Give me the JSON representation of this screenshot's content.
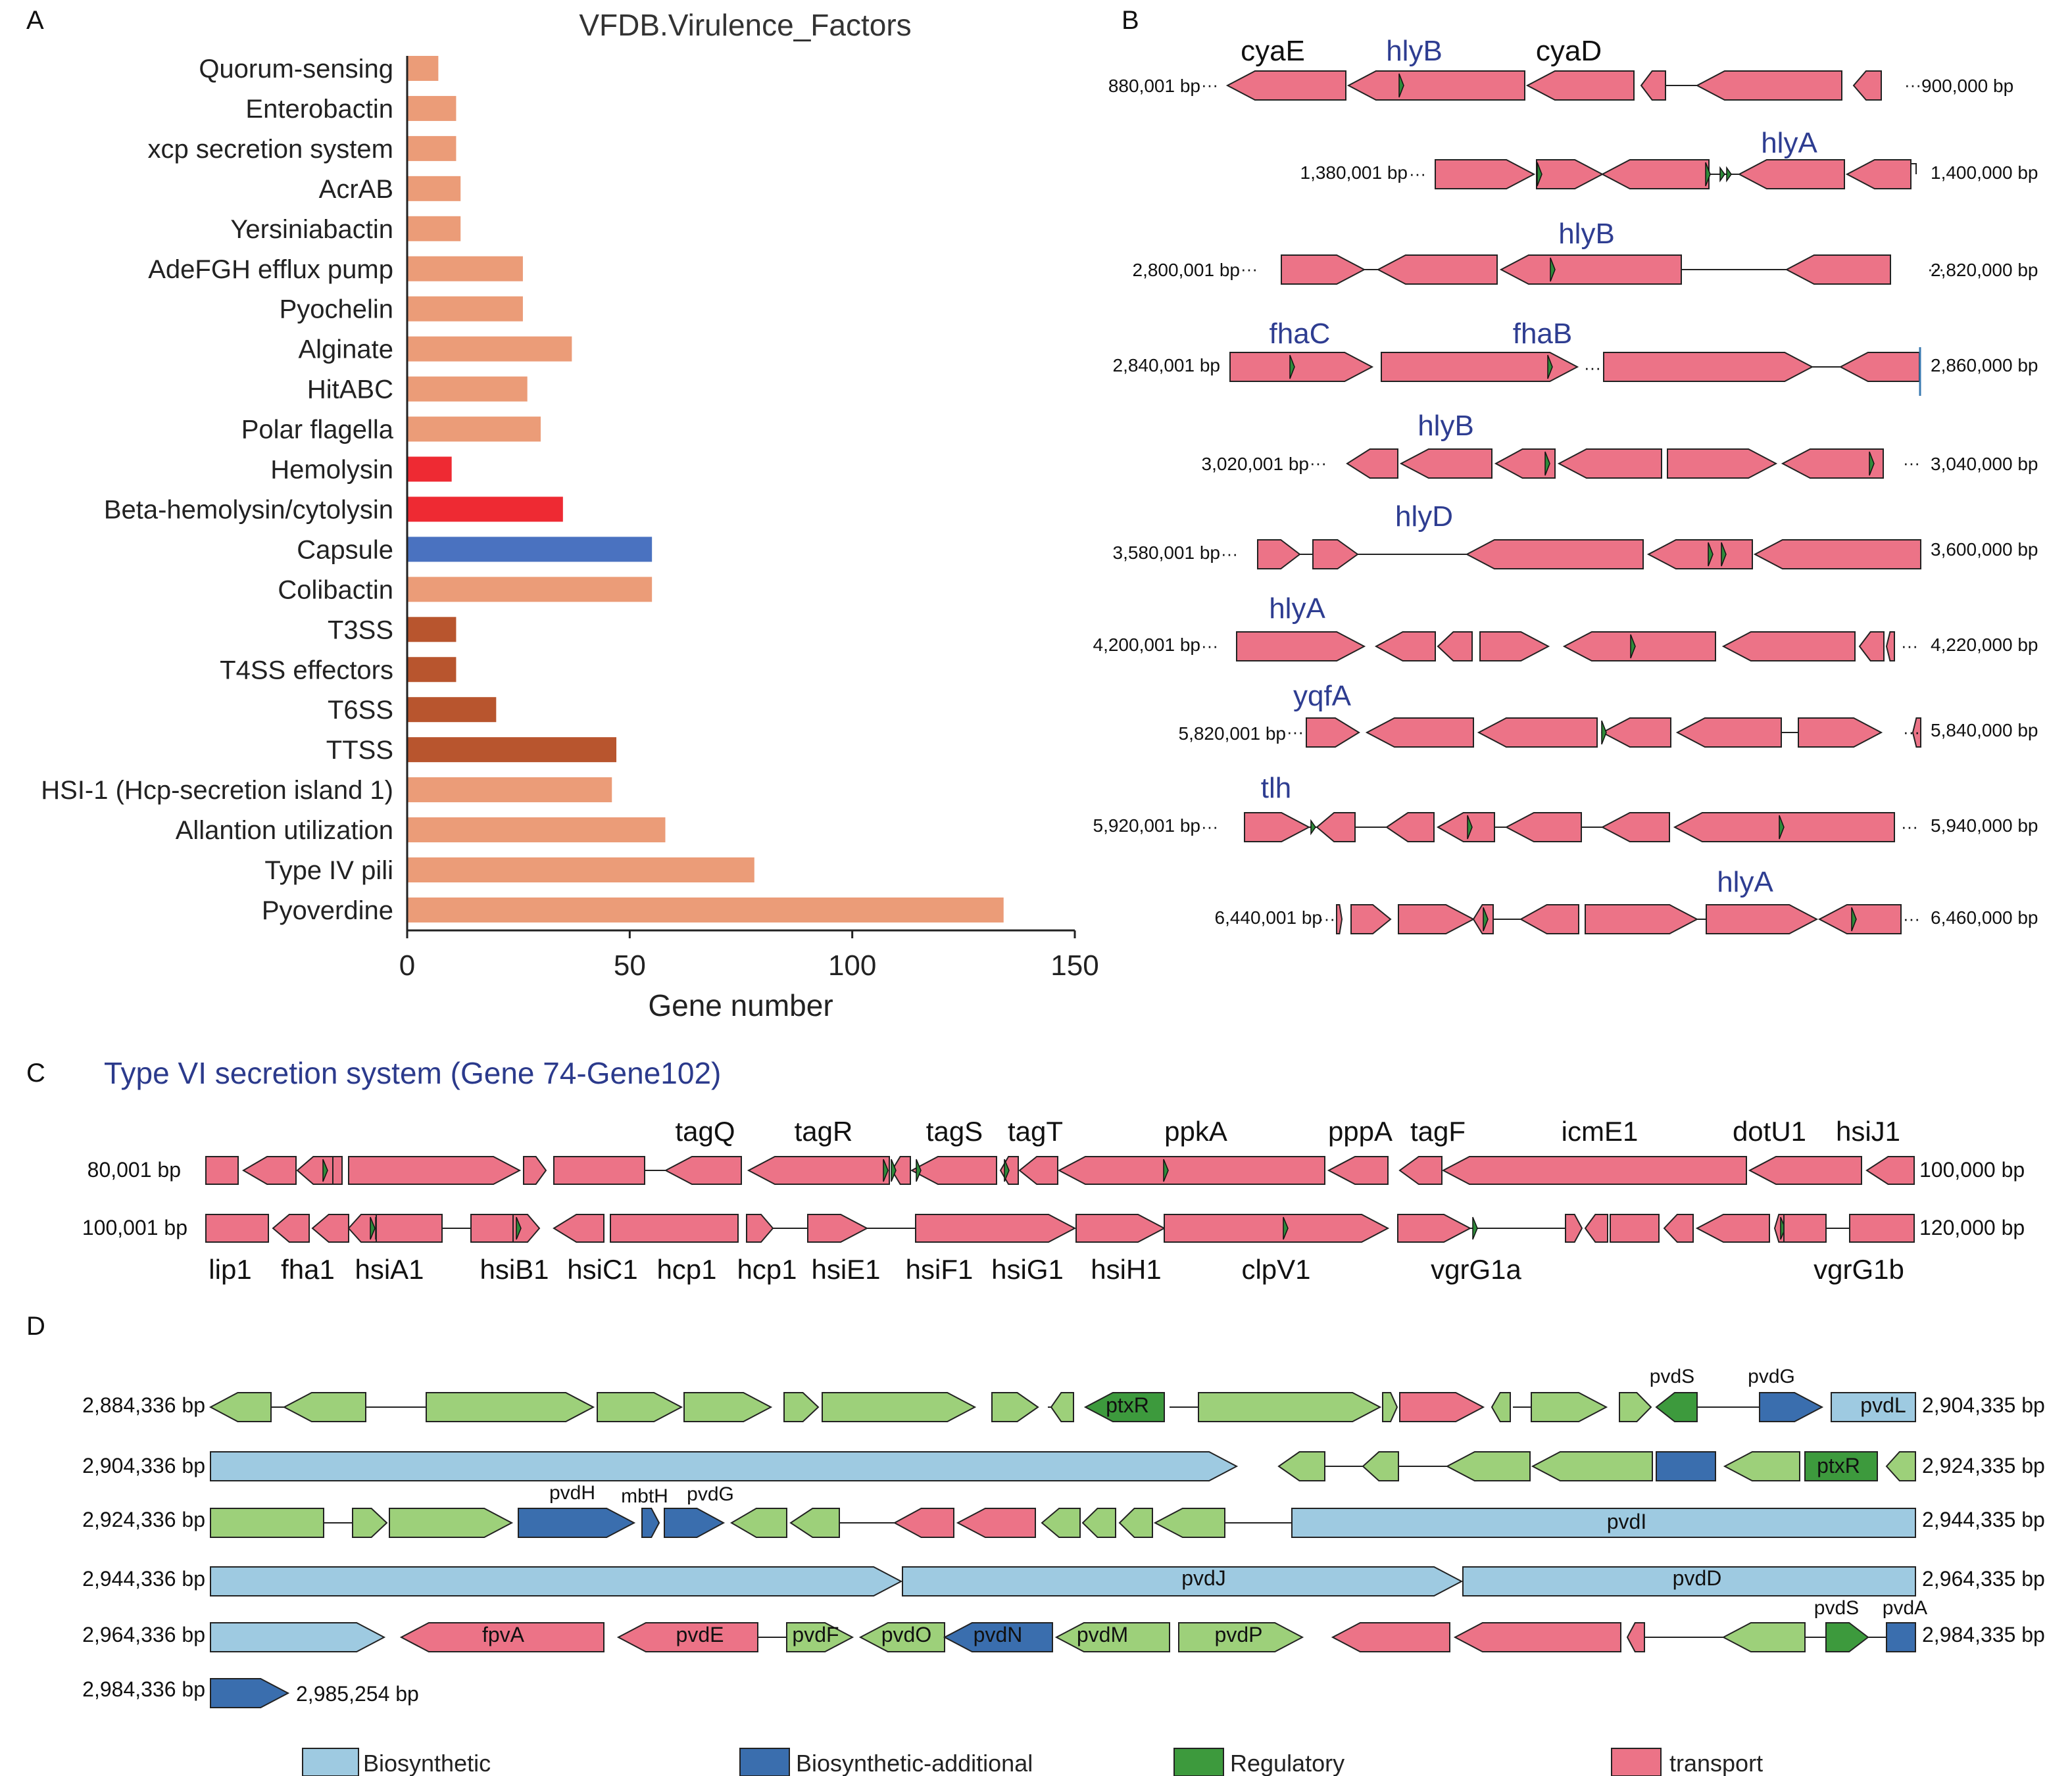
{
  "panels": {
    "a": "A",
    "b": "B",
    "c": "C",
    "d": "D"
  },
  "chart_data": {
    "type": "bar",
    "orientation": "horizontal",
    "title": "VFDB.Virulence_Factors",
    "xlabel": "Gene number",
    "ylabel": "",
    "xlim": [
      0,
      150
    ],
    "xticks": [
      "0",
      "50",
      "100",
      "150"
    ],
    "categories": [
      "Quorum-sensing",
      "Enterobactin",
      "xcp secretion system",
      "AcrAB",
      "Yersiniabactin",
      "AdeFGH efflux pump",
      "Pyochelin",
      "Alginate",
      "HitABC",
      "Polar flagella",
      "Hemolysin",
      "Beta-hemolysin/cytolysin",
      "Capsule",
      "Colibactin",
      "T3SS",
      "T4SS effectors",
      "T6SS",
      "TTSS",
      "HSI-1 (Hcp-secretion island 1)",
      "Allantion utilization",
      "Type IV pili",
      "Pyoverdine"
    ],
    "values": [
      7,
      11,
      11,
      12,
      12,
      26,
      26,
      37,
      27,
      30,
      10,
      35,
      55,
      55,
      11,
      11,
      20,
      47,
      46,
      58,
      78,
      134
    ],
    "bar_colors": [
      "#eb9c78",
      "#eb9c78",
      "#eb9c78",
      "#eb9c78",
      "#eb9c78",
      "#eb9c78",
      "#eb9c78",
      "#eb9c78",
      "#eb9c78",
      "#eb9c78",
      "#ee2a33",
      "#ee2a33",
      "#4a72c0",
      "#eb9c78",
      "#b8552e",
      "#b8552e",
      "#b8552e",
      "#b8552e",
      "#eb9c78",
      "#eb9c78",
      "#eb9c78",
      "#eb9c78"
    ],
    "grid": false
  },
  "panelB": {
    "loci": [
      {
        "start": "880,001 bp",
        "end": "900,000 bp",
        "genes": [
          {
            "name": "cyaE",
            "color": "#111111"
          },
          {
            "name": "hlyB",
            "color": "#2e3d91"
          },
          {
            "name": "cyaD",
            "color": "#111111"
          }
        ]
      },
      {
        "start": "1,380,001 bp",
        "end": "1,400,000 bp",
        "genes": [
          {
            "name": "hlyA",
            "color": "#2e3d91"
          }
        ]
      },
      {
        "start": "2,800,001 bp",
        "end": "2,820,000 bp",
        "genes": [
          {
            "name": "hlyB",
            "color": "#2e3d91"
          }
        ]
      },
      {
        "start": "2,840,001 bp",
        "end": "2,860,000 bp",
        "genes": [
          {
            "name": "fhaC",
            "color": "#2e3d91"
          },
          {
            "name": "fhaB",
            "color": "#2e3d91"
          }
        ]
      },
      {
        "start": "3,020,001 bp",
        "end": "3,040,000 bp",
        "genes": [
          {
            "name": "hlyB",
            "color": "#2e3d91"
          }
        ]
      },
      {
        "start": "3,580,001 bp",
        "end": "3,600,000 bp",
        "genes": [
          {
            "name": "hlyD",
            "color": "#2e3d91"
          }
        ]
      },
      {
        "start": "4,200,001 bp",
        "end": "4,220,000 bp",
        "genes": [
          {
            "name": "hlyA",
            "color": "#2e3d91"
          }
        ]
      },
      {
        "start": "5,820,001 bp",
        "end": "5,840,000 bp",
        "genes": [
          {
            "name": "yqfA",
            "color": "#2e3d91"
          }
        ]
      },
      {
        "start": "5,920,001 bp",
        "end": "5,940,000 bp",
        "genes": [
          {
            "name": "tlh",
            "color": "#2e3d91"
          }
        ]
      },
      {
        "start": "6,440,001 bp",
        "end": "6,460,000 bp",
        "genes": [
          {
            "name": "hlyA",
            "color": "#2e3d91"
          }
        ]
      }
    ]
  },
  "panelC": {
    "title": "Type VI secretion system (Gene 74-Gene102)",
    "row1": {
      "start": "80,001 bp",
      "end": "100,000 bp",
      "labels": [
        "tagQ",
        "tagR",
        "tagS",
        "tagT",
        "ppkA",
        "pppA",
        "tagF",
        "icmE1",
        "dotU1",
        "hsiJ1"
      ]
    },
    "row2": {
      "start": "100,001 bp",
      "end": "120,000 bp",
      "labels": [
        "lip1",
        "fha1",
        "hsiA1",
        "hsiB1",
        "hsiC1",
        "hcp1",
        "hcp1",
        "hsiE1",
        "hsiF1",
        "hsiG1",
        "hsiH1",
        "clpV1",
        "vgrG1a",
        "vgrG1b"
      ]
    }
  },
  "panelD": {
    "rows": [
      {
        "start": "2,884,336 bp",
        "end": "2,904,335 bp"
      },
      {
        "start": "2,904,336 bp",
        "end": "2,924,335 bp"
      },
      {
        "start": "2,924,336 bp",
        "end": "2,944,335 bp"
      },
      {
        "start": "2,944,336 bp",
        "end": "2,964,335 bp"
      },
      {
        "start": "2,964,336 bp",
        "end": "2,984,335 bp"
      },
      {
        "start": "2,984,336 bp",
        "end": "2,985,254 bp"
      }
    ],
    "labels": {
      "ptxR": "ptxR",
      "pvdS": "pvdS",
      "pvdG": "pvdG",
      "pvdL": "pvdL",
      "pvdH": "pvdH",
      "mbtH": "mbtH",
      "pvdI": "pvdI",
      "pvdJ": "pvdJ",
      "pvdD": "pvdD",
      "fpvA": "fpvA",
      "pvdE": "pvdE",
      "pvdF": "pvdF",
      "pvdO": "pvdO",
      "pvdN": "pvdN",
      "pvdM": "pvdM",
      "pvdP": "pvdP",
      "pvdA": "pvdA"
    },
    "legend": [
      {
        "label": "Biosynthetic",
        "color": "#9ecae1"
      },
      {
        "label": "Biosynthetic-additional",
        "color": "#3a6eae"
      },
      {
        "label": "Regulatory",
        "color": "#3d9a3d"
      },
      {
        "label": "transport",
        "color": "#ec7387"
      }
    ]
  },
  "colors": {
    "gene": "#ec7387",
    "biosyn": "#9ecae1",
    "biosyn_add": "#3a6eae",
    "regulatory": "#3d9a3d",
    "other": "#9dd07a",
    "marker": "#2e8b3a"
  }
}
